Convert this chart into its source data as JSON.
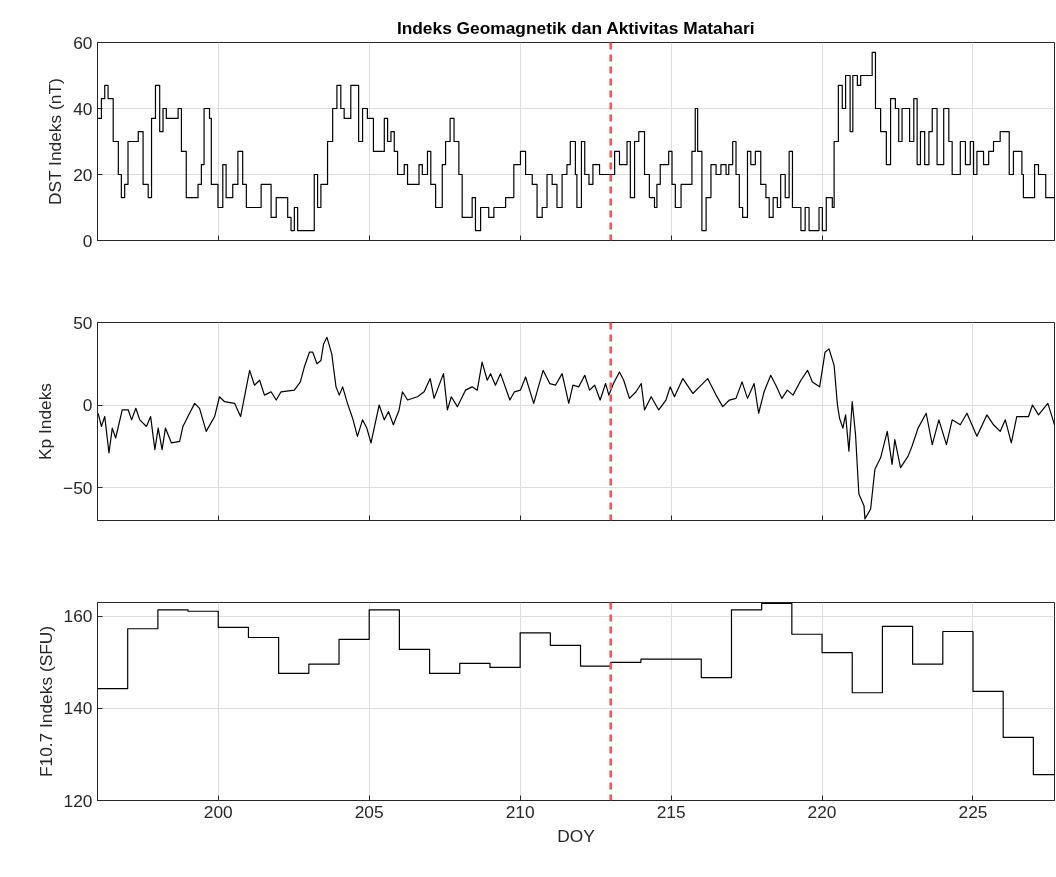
{
  "chart_data": [
    {
      "type": "step",
      "title": "Indeks Geomagnetik dan Aktivitas Matahari",
      "ylabel": "DST Indeks (nT)",
      "xlim": [
        196,
        227.7
      ],
      "xticks": [
        200,
        205,
        210,
        215,
        220,
        225
      ],
      "ylim": [
        0,
        60
      ],
      "yticks": [
        0,
        20,
        40,
        60
      ],
      "grid": true,
      "tick_labels": "y",
      "ref_lines": [
        {
          "axis": "x",
          "value": 213,
          "color": "#ff5050",
          "line_style": "dashed"
        }
      ],
      "series": [
        {
          "color": "#000000",
          "x": [
            196.02,
            196.13,
            196.24,
            196.35,
            196.52,
            196.69,
            196.79,
            196.9,
            197.01,
            197.18,
            197.35,
            197.46,
            197.51,
            197.68,
            197.79,
            197.92,
            198.06,
            198.17,
            198.28,
            198.67,
            198.78,
            198.94,
            199.22,
            199.33,
            199.44,
            199.53,
            199.71,
            199.77,
            199.99,
            200.15,
            200.26,
            200.48,
            200.65,
            200.81,
            200.93,
            201.31,
            201.42,
            201.59,
            201.75,
            201.92,
            202.19,
            202.3,
            202.41,
            202.52,
            202.63,
            203.07,
            203.18,
            203.29,
            203.4,
            203.62,
            203.79,
            203.93,
            204.06,
            204.17,
            204.39,
            204.56,
            204.65,
            204.78,
            204.94,
            205.14,
            205.33,
            205.5,
            205.61,
            205.72,
            205.83,
            205.94,
            206.16,
            206.27,
            206.49,
            206.65,
            206.76,
            206.93,
            207.04,
            207.2,
            207.42,
            207.53,
            207.68,
            207.81,
            207.97,
            208.08,
            208.25,
            208.41,
            208.52,
            208.69,
            208.85,
            208.96,
            209.13,
            209.52,
            209.79,
            210.01,
            210.18,
            210.4,
            210.56,
            210.73,
            210.89,
            211.06,
            211.22,
            211.39,
            211.55,
            211.66,
            211.83,
            211.88,
            212.03,
            212.14,
            212.28,
            212.41,
            212.63,
            212.96,
            213.13,
            213.29,
            213.46,
            213.54,
            213.65,
            213.79,
            213.93,
            214.12,
            214.28,
            214.45,
            214.53,
            214.64,
            214.83,
            214.92,
            215.03,
            215.14,
            215.33,
            215.61,
            215.69,
            215.8,
            215.88,
            216.02,
            216.16,
            216.32,
            216.49,
            216.65,
            216.82,
            216.91,
            217.04,
            217.15,
            217.26,
            217.37,
            217.53,
            217.64,
            217.79,
            217.97,
            218.14,
            218.25,
            218.38,
            218.52,
            218.63,
            218.78,
            218.91,
            219.02,
            219.24,
            219.3,
            219.44,
            219.57,
            219.79,
            219.9,
            220.01,
            220.14,
            220.34,
            220.4,
            220.54,
            220.67,
            220.78,
            220.93,
            221.02,
            221.17,
            221.28,
            221.61,
            221.66,
            221.77,
            221.94,
            222.13,
            222.27,
            222.43,
            222.54,
            222.65,
            222.82,
            222.9,
            223.04,
            223.15,
            223.26,
            223.4,
            223.54,
            223.65,
            223.81,
            224.03,
            224.2,
            224.31,
            224.47,
            224.58,
            224.75,
            224.91,
            225.02,
            225.13,
            225.35,
            225.52,
            225.68,
            225.9,
            226.07,
            226.2,
            226.34,
            226.62,
            226.67,
            226.84,
            227.04,
            227.17,
            227.33,
            227.41,
            227.7
          ],
          "values": [
            37,
            43,
            47,
            43,
            30,
            20,
            13,
            17,
            30,
            30,
            33,
            33,
            17,
            13,
            37,
            47,
            33,
            40,
            37,
            40,
            27,
            13,
            13,
            17,
            23,
            40,
            37,
            17,
            10,
            23,
            13,
            17,
            27,
            17,
            10,
            10,
            17,
            17,
            7,
            13,
            13,
            7,
            3,
            10,
            3,
            3,
            20,
            10,
            17,
            30,
            40,
            47,
            40,
            37,
            47,
            47,
            30,
            40,
            37,
            27,
            27,
            37,
            30,
            33,
            27,
            20,
            23,
            17,
            17,
            23,
            20,
            27,
            17,
            10,
            23,
            30,
            37,
            30,
            20,
            7,
            7,
            13,
            3,
            10,
            10,
            7,
            10,
            13,
            23,
            27,
            20,
            17,
            7,
            10,
            20,
            17,
            10,
            20,
            23,
            30,
            20,
            10,
            30,
            20,
            17,
            23,
            20,
            20,
            27,
            23,
            23,
            30,
            13,
            30,
            33,
            20,
            13,
            10,
            17,
            23,
            23,
            27,
            17,
            10,
            17,
            17,
            27,
            40,
            27,
            3,
            13,
            23,
            20,
            23,
            20,
            23,
            30,
            20,
            10,
            7,
            27,
            23,
            27,
            17,
            13,
            7,
            13,
            10,
            20,
            13,
            27,
            10,
            10,
            3,
            10,
            3,
            3,
            10,
            3,
            13,
            10,
            30,
            47,
            40,
            50,
            33,
            50,
            47,
            50,
            50,
            57,
            40,
            33,
            23,
            43,
            40,
            30,
            40,
            40,
            30,
            43,
            23,
            33,
            23,
            33,
            40,
            23,
            40,
            30,
            20,
            20,
            30,
            23,
            30,
            20,
            27,
            23,
            27,
            30,
            33,
            33,
            20,
            27,
            20,
            13,
            13,
            23,
            20,
            20,
            13,
            13
          ]
        }
      ]
    },
    {
      "type": "line",
      "ylabel": "Kp Indeks",
      "xlim": [
        196,
        227.7
      ],
      "xticks": [
        200,
        205,
        210,
        215,
        220,
        225
      ],
      "ylim": [
        -70,
        50
      ],
      "yticks": [
        -50,
        0,
        50
      ],
      "grid": true,
      "tick_labels": "y",
      "ref_lines": [
        {
          "axis": "x",
          "value": 213,
          "color": "#ff5050",
          "line_style": "dashed"
        }
      ],
      "series": [
        {
          "color": "#000000",
          "x": [
            196.02,
            196.13,
            196.24,
            196.38,
            196.49,
            196.6,
            196.82,
            197.02,
            197.13,
            197.27,
            197.4,
            197.62,
            197.76,
            197.9,
            198.01,
            198.14,
            198.25,
            198.45,
            198.72,
            198.83,
            199.02,
            199.22,
            199.38,
            199.6,
            199.88,
            200.04,
            200.21,
            200.54,
            200.74,
            201.04,
            201.2,
            201.37,
            201.53,
            201.75,
            201.92,
            202.08,
            202.52,
            202.72,
            202.85,
            203.02,
            203.13,
            203.27,
            203.4,
            203.49,
            203.6,
            203.76,
            203.9,
            204.01,
            204.12,
            204.28,
            204.45,
            204.61,
            204.78,
            204.92,
            205.06,
            205.33,
            205.5,
            205.64,
            205.8,
            205.99,
            206.1,
            206.27,
            206.6,
            206.82,
            207.02,
            207.15,
            207.46,
            207.59,
            207.72,
            207.92,
            208.19,
            208.41,
            208.58,
            208.74,
            208.91,
            209.02,
            209.18,
            209.35,
            209.66,
            209.81,
            210.01,
            210.18,
            210.45,
            210.76,
            210.98,
            211.17,
            211.39,
            211.61,
            211.75,
            211.94,
            212.14,
            212.3,
            212.47,
            212.65,
            212.83,
            212.94,
            213.09,
            213.29,
            213.43,
            213.62,
            213.84,
            214.01,
            214.12,
            214.34,
            214.59,
            214.83,
            214.97,
            215.11,
            215.39,
            215.72,
            215.94,
            216.21,
            216.49,
            216.71,
            216.93,
            217.15,
            217.35,
            217.53,
            217.75,
            217.9,
            218.08,
            218.3,
            218.47,
            218.67,
            218.85,
            219.04,
            219.3,
            219.52,
            219.68,
            219.92,
            220.1,
            220.23,
            220.4,
            220.51,
            220.58,
            220.69,
            220.78,
            220.89,
            221.0,
            221.11,
            221.22,
            221.39,
            221.42,
            221.61,
            221.75,
            221.94,
            222.16,
            222.32,
            222.41,
            222.6,
            222.85,
            222.98,
            223.18,
            223.45,
            223.65,
            223.87,
            224.12,
            224.31,
            224.58,
            224.8,
            225.13,
            225.46,
            225.68,
            225.9,
            226.07,
            226.27,
            226.45,
            226.84,
            226.97,
            227.17,
            227.48,
            227.7
          ],
          "values": [
            -5,
            -13,
            -7,
            -29,
            -14,
            -20,
            -3,
            -3,
            -9,
            -2,
            -9,
            -13,
            -7,
            -27,
            -14,
            -27,
            -14,
            -23,
            -22,
            -13,
            -6,
            1,
            -2,
            -16,
            -7,
            5,
            2,
            1,
            -7,
            21,
            12,
            15,
            6,
            8,
            3,
            8,
            9,
            14,
            23,
            32,
            32,
            25,
            27,
            37,
            41,
            31,
            11,
            6,
            11,
            1,
            -8,
            -19,
            -9,
            -14,
            -23,
            0,
            -9,
            -4,
            -12,
            -3,
            8,
            3,
            5,
            8,
            16,
            4,
            19,
            -3,
            5,
            -1,
            9,
            11,
            9,
            26,
            15,
            19,
            12,
            19,
            3,
            8,
            9,
            17,
            1,
            21,
            13,
            12,
            19,
            1,
            12,
            11,
            18,
            9,
            12,
            3,
            13,
            6,
            13,
            20,
            15,
            4,
            8,
            13,
            -3,
            5,
            -3,
            3,
            11,
            5,
            16,
            7,
            11,
            16,
            6,
            -1,
            3,
            4,
            14,
            4,
            13,
            -5,
            8,
            18,
            12,
            4,
            9,
            6,
            15,
            21,
            14,
            11,
            32,
            34,
            24,
            0,
            -8,
            -14,
            -6,
            -28,
            2,
            -18,
            -54,
            -61,
            -69,
            -63,
            -39,
            -32,
            -16,
            -36,
            -21,
            -38,
            -31,
            -25,
            -14,
            -5,
            -24,
            -9,
            -24,
            -9,
            -12,
            -5,
            -19,
            -6,
            -12,
            -16,
            -9,
            -23,
            -7,
            -7,
            0,
            -6,
            1,
            -12
          ]
        }
      ]
    },
    {
      "type": "step",
      "xlabel": "DOY",
      "ylabel": "F10.7 Indeks (SFU)",
      "xlim": [
        196,
        227.7
      ],
      "xticks": [
        200,
        205,
        210,
        215,
        220,
        225
      ],
      "ylim": [
        120,
        163
      ],
      "yticks": [
        120,
        140,
        160
      ],
      "grid": true,
      "ref_lines": [
        {
          "axis": "x",
          "value": 213,
          "color": "#ff5050",
          "line_style": "dashed"
        }
      ],
      "series": [
        {
          "color": "#000000",
          "x": [
            196,
            197,
            198,
            199,
            200,
            201,
            202,
            203,
            204,
            205,
            206,
            207,
            208,
            209,
            210,
            211,
            212,
            213,
            214,
            215,
            216,
            217,
            218,
            219,
            220,
            221,
            222,
            223,
            224,
            225,
            226,
            227,
            227.7
          ],
          "values": [
            144.3,
            157.3,
            161.4,
            161.1,
            157.6,
            155.4,
            147.6,
            149.6,
            155.0,
            161.4,
            152.8,
            147.6,
            149.8,
            148.9,
            156.4,
            153.7,
            149.2,
            150.0,
            150.7,
            150.7,
            146.7,
            161.4,
            162.8,
            156.1,
            152.1,
            143.4,
            157.8,
            149.6,
            156.7,
            143.7,
            133.7,
            125.6,
            125.6
          ]
        }
      ]
    }
  ]
}
